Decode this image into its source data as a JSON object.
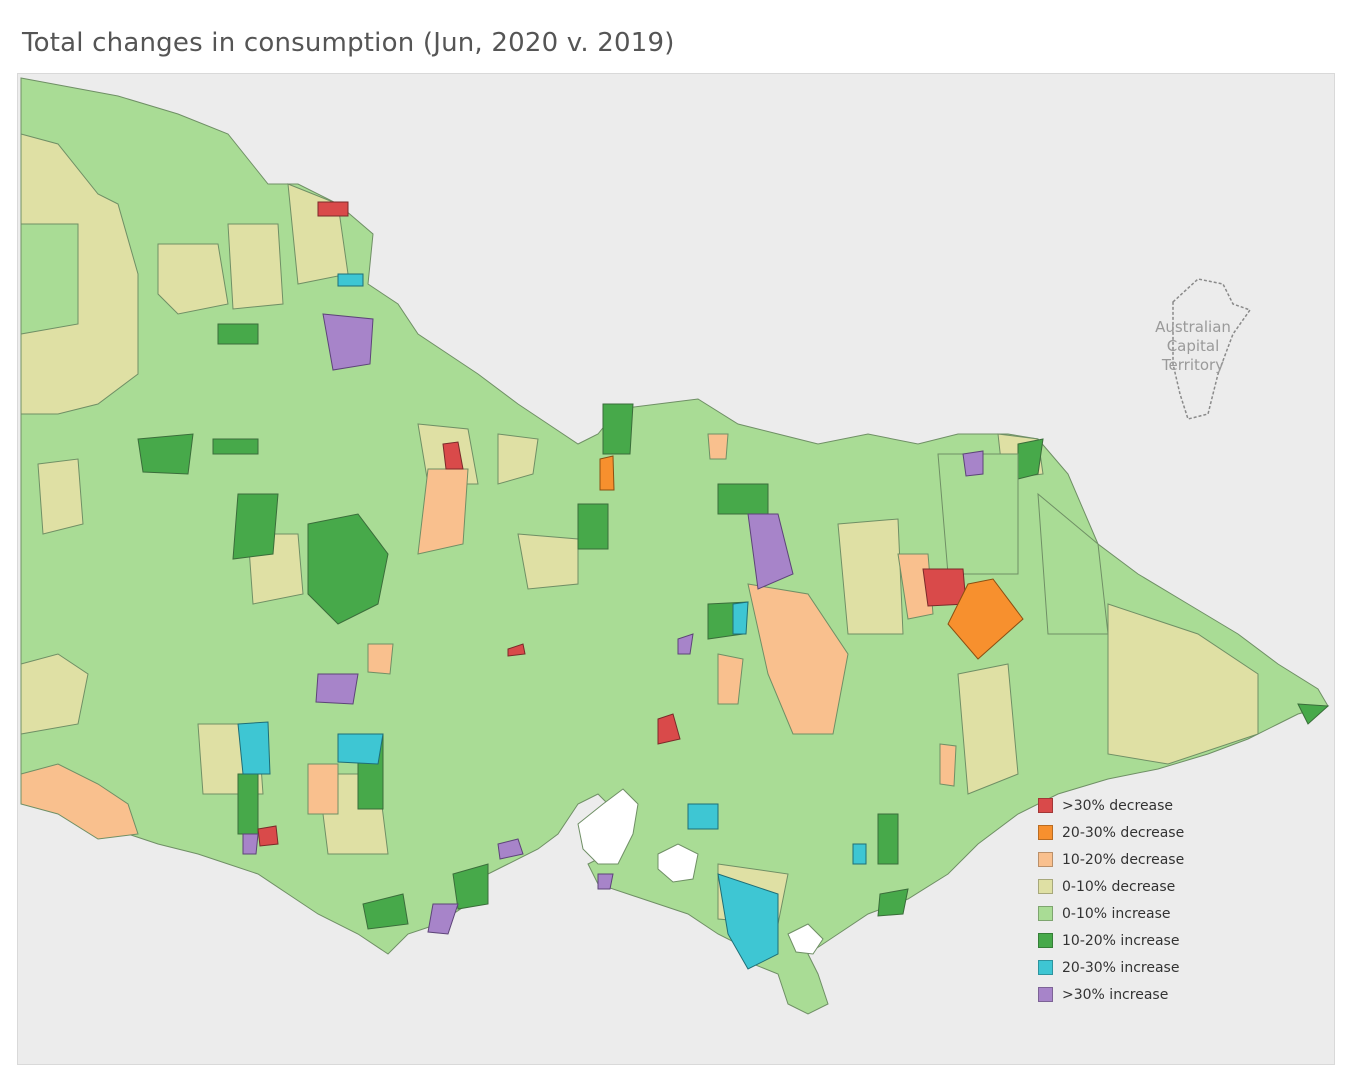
{
  "title": "Total changes in consumption (Jun, 2020 v. 2019)",
  "map": {
    "region_label_lines": [
      "Australian",
      "Capital",
      "Territory"
    ],
    "background_color": "#ececec",
    "land_color": "#a9dc95",
    "water_color": "#ffffff"
  },
  "legend": {
    "items": [
      {
        "label": ">30% decrease",
        "color": "#d94a4a"
      },
      {
        "label": "20-30% decrease",
        "color": "#f7902e"
      },
      {
        "label": "10-20% decrease",
        "color": "#f9c08e"
      },
      {
        "label": "0-10% decrease",
        "color": "#dfe0a4"
      },
      {
        "label": "0-10% increase",
        "color": "#a9dc95"
      },
      {
        "label": "10-20% increase",
        "color": "#47a94a"
      },
      {
        "label": "20-30% increase",
        "color": "#3ec6d3"
      },
      {
        "label": ">30% increase",
        "color": "#a784c9"
      }
    ]
  }
}
